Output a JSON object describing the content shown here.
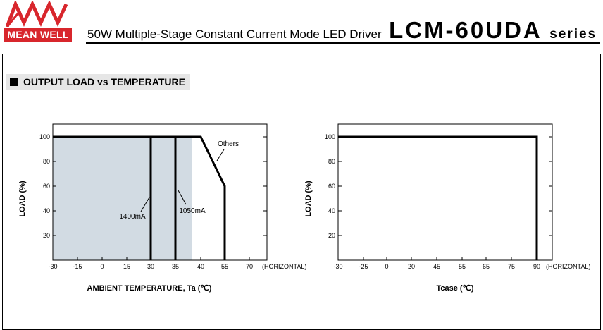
{
  "header": {
    "logo_text": "MEAN WELL",
    "logo_colors": {
      "brand_red": "#d8262c"
    },
    "subtitle": "50W Multiple-Stage Constant Current Mode LED Driver",
    "model": "LCM-60UDA",
    "series_label": "series"
  },
  "section": {
    "title": "OUTPUT LOAD vs TEMPERATURE"
  },
  "chart_data": [
    {
      "type": "line",
      "xlabel": "AMBIENT TEMPERATURE, Ta (℃)",
      "ylabel": "LOAD (%)",
      "x_ticks": [
        "-30",
        "-15",
        "0",
        "15",
        "30",
        "35",
        "40",
        "55",
        "70"
      ],
      "y_ticks": [
        "100",
        "80",
        "60",
        "40",
        "20"
      ],
      "axis_note": "(HORIZONTAL)",
      "xlim": [
        -30,
        70
      ],
      "ylim": [
        0,
        100
      ],
      "series": [
        {
          "name": "1400mA",
          "x": [
            -30,
            30,
            30
          ],
          "y": [
            100,
            100,
            0
          ]
        },
        {
          "name": "1050mA",
          "x": [
            -30,
            35,
            35
          ],
          "y": [
            100,
            100,
            0
          ]
        },
        {
          "name": "Others",
          "x": [
            -30,
            40,
            55,
            55
          ],
          "y": [
            100,
            100,
            60,
            0
          ]
        }
      ],
      "shaded_region": {
        "x": [
          -30,
          35
        ],
        "y": [
          0,
          100
        ],
        "color": "#d2dbe3"
      },
      "annotations": [
        "Others",
        "1400mA",
        "1050mA"
      ]
    },
    {
      "type": "line",
      "xlabel": "Tcase (℃)",
      "ylabel": "LOAD (%)",
      "x_ticks": [
        "-30",
        "-25",
        "0",
        "20",
        "45",
        "55",
        "65",
        "75",
        "90"
      ],
      "y_ticks": [
        "100",
        "80",
        "60",
        "40",
        "20"
      ],
      "axis_note": "(HORIZONTAL)",
      "xlim": [
        -30,
        90
      ],
      "ylim": [
        0,
        100
      ],
      "series": [
        {
          "x": [
            -30,
            90,
            90
          ],
          "y": [
            100,
            100,
            0
          ]
        }
      ]
    }
  ]
}
